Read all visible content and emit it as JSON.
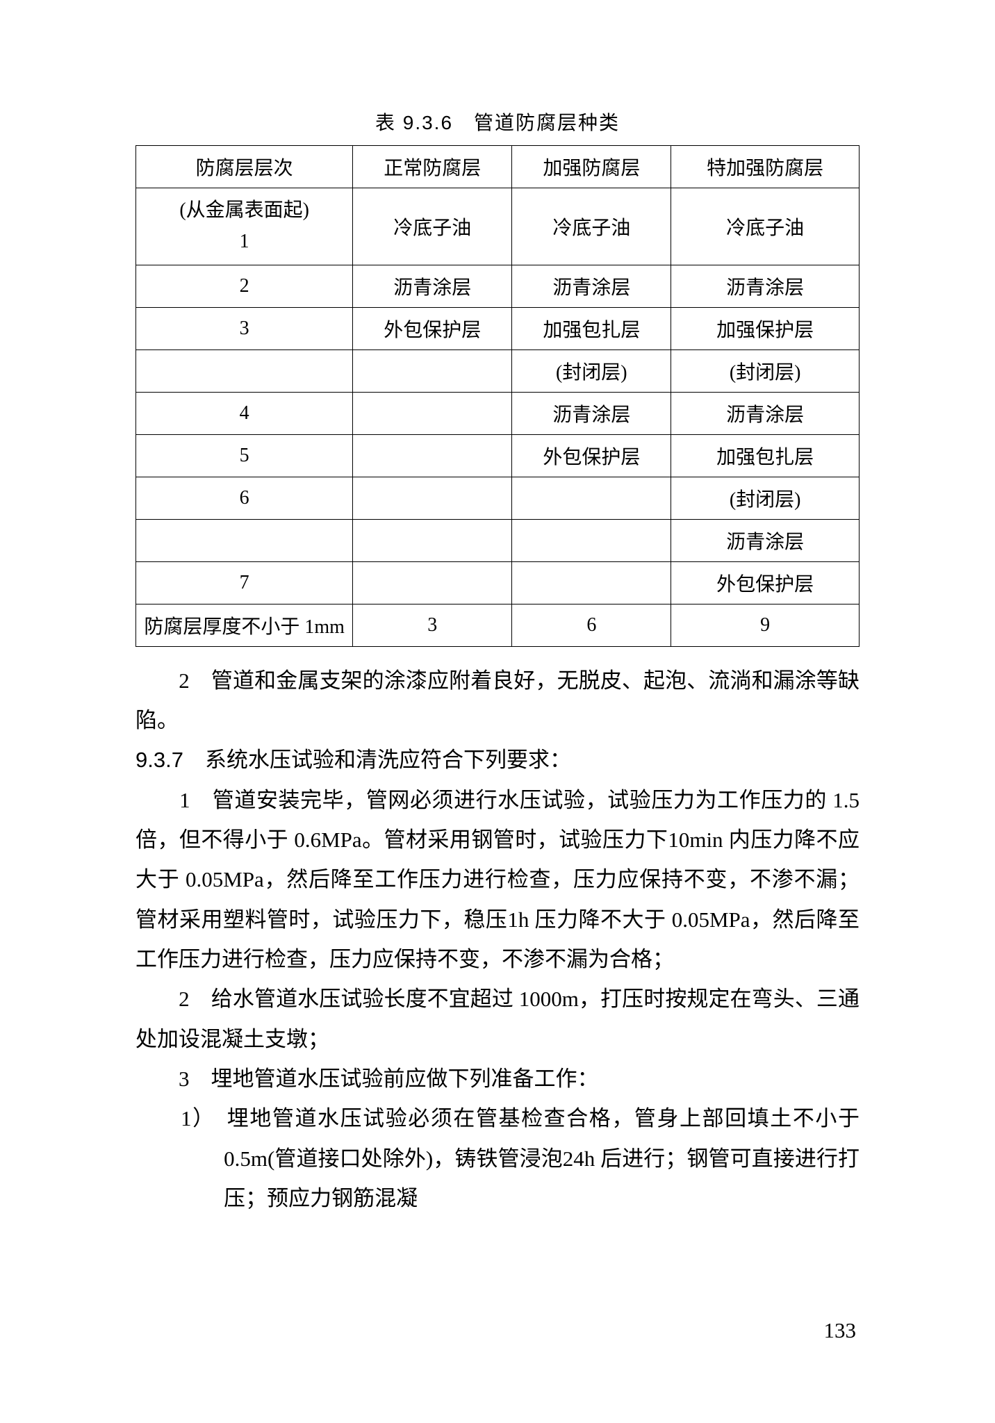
{
  "table": {
    "caption": "表 9.3.6　管道防腐层种类",
    "headers": [
      "防腐层层次",
      "正常防腐层",
      "加强防腐层",
      "特加强防腐层"
    ],
    "rows": [
      [
        "(从金属表面起)\n1",
        "冷底子油",
        "冷底子油",
        "冷底子油"
      ],
      [
        "2",
        "沥青涂层",
        "沥青涂层",
        "沥青涂层"
      ],
      [
        "3",
        "外包保护层",
        "加强包扎层",
        "加强保护层"
      ],
      [
        "",
        "",
        "(封闭层)",
        "(封闭层)"
      ],
      [
        "4",
        "",
        "沥青涂层",
        "沥青涂层"
      ],
      [
        "5",
        "",
        "外包保护层",
        "加强包扎层"
      ],
      [
        "6",
        "",
        "",
        "(封闭层)"
      ],
      [
        "",
        "",
        "",
        "沥青涂层"
      ],
      [
        "7",
        "",
        "",
        "外包保护层"
      ],
      [
        "防腐层厚度不小于 1mm",
        "3",
        "6",
        "9"
      ]
    ]
  },
  "paragraphs": {
    "p2": "　　2　管道和金属支架的涂漆应附着良好，无脱皮、起泡、流淌和漏涂等缺陷。",
    "p937": "9.3.7　系统水压试验和清洗应符合下列要求：",
    "p937_1": "　　1　管道安装完毕，管网必须进行水压试验，试验压力为工作压力的 1.5 倍，但不得小于 0.6MPa。管材采用钢管时，试验压力下10min 内压力降不应大于 0.05MPa，然后降至工作压力进行检查，压力应保持不变，不渗不漏；管材采用塑料管时，试验压力下，稳压1h 压力降不大于 0.05MPa，然后降至工作压力进行检查，压力应保持不变，不渗不漏为合格；",
    "p937_2": "　　2　给水管道水压试验长度不宜超过 1000m，打压时按规定在弯头、三通处加设混凝土支墩；",
    "p937_3": "　　3　埋地管道水压试验前应做下列准备工作：",
    "p937_3_1": "1）　埋地管道水压试验必须在管基检查合格，管身上部回填土不小于 0.5m(管道接口处除外)，铸铁管浸泡24h 后进行；钢管可直接进行打压；预应力钢筋混凝"
  },
  "pageNumber": "133"
}
